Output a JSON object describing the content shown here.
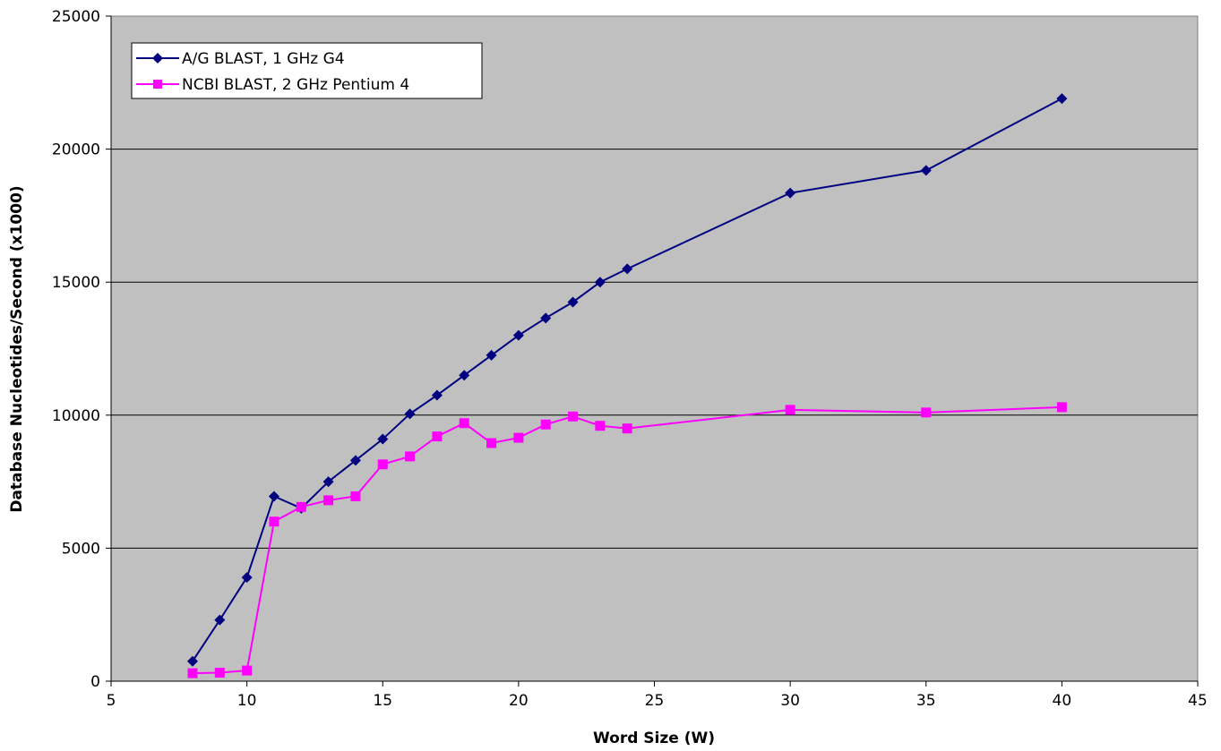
{
  "chart_data": {
    "type": "line",
    "xlabel": "Word Size (W)",
    "ylabel": "Database Nucleotides/Second (x1000)",
    "xlim": [
      5,
      45
    ],
    "ylim": [
      0,
      25000
    ],
    "x_ticks": [
      5,
      10,
      15,
      20,
      25,
      30,
      35,
      40,
      45
    ],
    "y_ticks": [
      0,
      5000,
      10000,
      15000,
      20000,
      25000
    ],
    "grid": "horizontal",
    "legend_position": "top-left",
    "plot_background": "#c0c0c0",
    "series": [
      {
        "name": "A/G BLAST, 1 GHz G4",
        "color": "#000080",
        "marker": "diamond",
        "x": [
          8,
          9,
          10,
          11,
          12,
          13,
          14,
          15,
          16,
          17,
          18,
          19,
          20,
          21,
          22,
          23,
          24,
          30,
          35,
          40
        ],
        "values": [
          750,
          2300,
          3900,
          6950,
          6500,
          7500,
          8300,
          9100,
          10050,
          10750,
          11500,
          12250,
          13000,
          13650,
          14250,
          15000,
          15500,
          18350,
          19200,
          21900
        ]
      },
      {
        "name": "NCBI BLAST, 2 GHz Pentium 4",
        "color": "#ff00ff",
        "marker": "square",
        "x": [
          8,
          9,
          10,
          11,
          12,
          13,
          14,
          15,
          16,
          17,
          18,
          19,
          20,
          21,
          22,
          23,
          24,
          30,
          35,
          40
        ],
        "values": [
          300,
          320,
          400,
          6000,
          6550,
          6800,
          6950,
          8150,
          8450,
          9200,
          9700,
          8950,
          9150,
          9650,
          9950,
          9600,
          9500,
          10200,
          10100,
          10300
        ]
      }
    ]
  }
}
